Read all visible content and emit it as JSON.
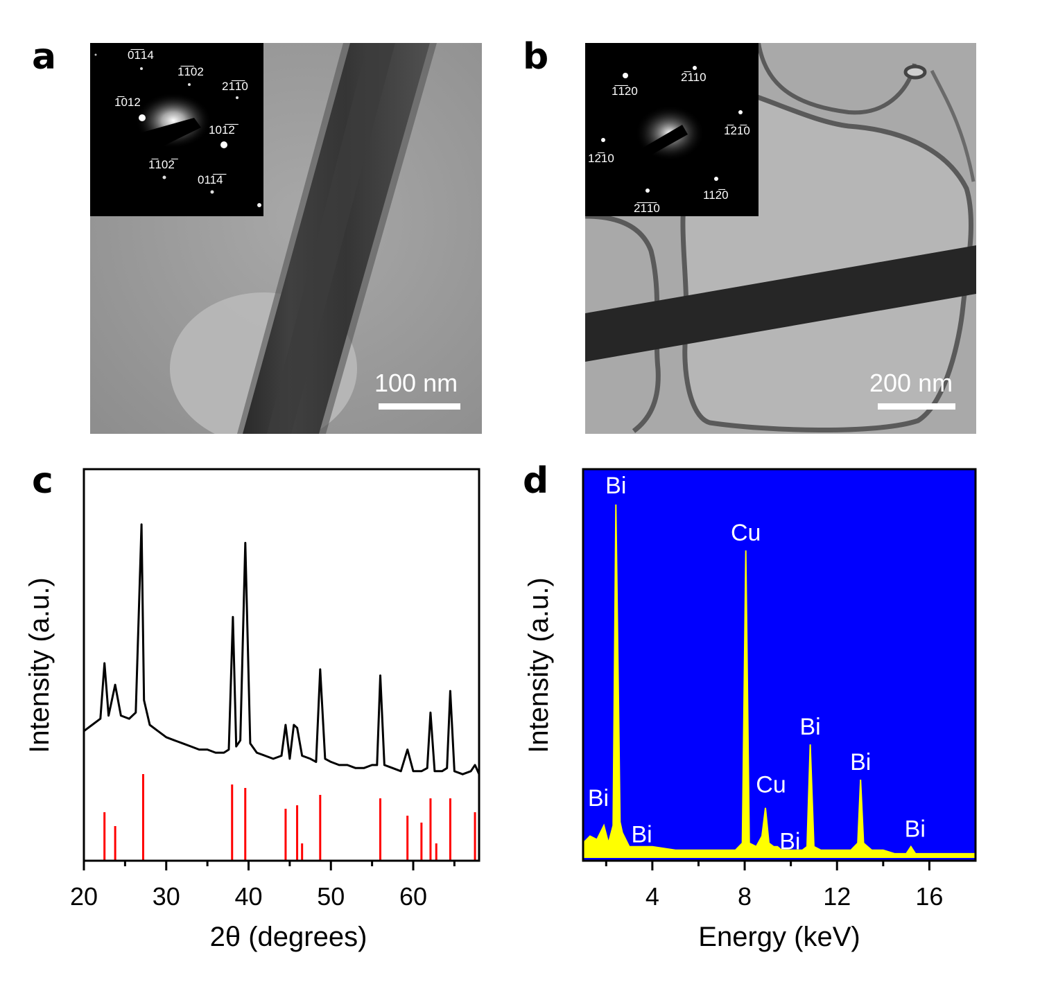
{
  "panel_labels": [
    "a",
    "b",
    "c",
    "d"
  ],
  "panel_a": {
    "scale_bar_label": "100 nm",
    "diffraction_spots": [
      "0̅1̅14",
      "1̅1̅02",
      "21̅1̅0",
      "1̅012",
      "101̅2̅",
      "1̅102̅",
      "011̅4̅"
    ]
  },
  "panel_b": {
    "scale_bar_label": "200 nm",
    "diffraction_spots": [
      "2̅110",
      "1̅1̅20",
      "1̅21̅0",
      "12̅10",
      "2̅1̅1̅0",
      "112̅0"
    ]
  },
  "chart_data": [
    {
      "type": "line",
      "panel": "c",
      "xlabel": "2θ (degrees)",
      "ylabel": "Intensity (a.u.)",
      "xlim": [
        20,
        68
      ],
      "xticks": [
        20,
        30,
        40,
        50,
        60
      ],
      "series": [
        {
          "color": "#000000",
          "x": [
            20.0,
            21.0,
            22.0,
            22.5,
            23.0,
            23.8,
            24.5,
            25.5,
            26.3,
            27.0,
            27.3,
            28.0,
            29.0,
            30.0,
            31.0,
            32.0,
            33.0,
            34.0,
            35.0,
            36.0,
            37.0,
            37.6,
            38.1,
            38.5,
            39.0,
            39.6,
            40.2,
            41.0,
            42.0,
            43.0,
            44.0,
            44.5,
            45.0,
            45.5,
            45.9,
            46.5,
            47.5,
            48.2,
            48.7,
            49.3,
            50.0,
            51.0,
            52.0,
            53.0,
            54.0,
            55.0,
            55.6,
            56.0,
            56.5,
            57.5,
            58.5,
            59.3,
            60.0,
            61.0,
            61.7,
            62.1,
            62.6,
            63.5,
            64.1,
            64.5,
            65.0,
            66.0,
            67.0,
            67.5,
            68.0
          ],
          "y": [
            18,
            20,
            22,
            40,
            23,
            33,
            23,
            22,
            24,
            85,
            28,
            20,
            18,
            16,
            15,
            14,
            13,
            12,
            12,
            11,
            11,
            12,
            55,
            13,
            15,
            79,
            14,
            11,
            10,
            9,
            10,
            20,
            9,
            20,
            19,
            10,
            9,
            8,
            38,
            9,
            8,
            7,
            7,
            6,
            6,
            7,
            7,
            36,
            7,
            6,
            5,
            12,
            5,
            5,
            6,
            24,
            5,
            5,
            6,
            31,
            5,
            4,
            5,
            7,
            4
          ]
        }
      ],
      "reference_peaks": {
        "color": "#ff0000",
        "x": [
          22.5,
          23.8,
          27.2,
          38.0,
          39.6,
          44.5,
          45.9,
          46.5,
          48.7,
          56.0,
          59.3,
          61.0,
          62.1,
          62.8,
          64.5,
          67.5
        ],
        "height": [
          14,
          10,
          25,
          22,
          21,
          15,
          16,
          5,
          19,
          18,
          13,
          11,
          18,
          5,
          18,
          14
        ]
      }
    },
    {
      "type": "area",
      "panel": "d",
      "xlabel": "Energy (keV)",
      "ylabel": "Intensity (a.u.)",
      "xlim": [
        1.0,
        18.0
      ],
      "xticks": [
        4,
        8,
        12,
        16
      ],
      "background_color": "#0000ff",
      "fill_color": "#ffff00",
      "series": [
        {
          "x": [
            1.0,
            1.3,
            1.6,
            1.9,
            2.1,
            2.3,
            2.42,
            2.6,
            2.7,
            3.0,
            3.5,
            4.0,
            5.0,
            6.0,
            7.0,
            7.6,
            7.9,
            8.05,
            8.2,
            8.5,
            8.75,
            8.9,
            9.05,
            9.25,
            9.42,
            9.6,
            10.0,
            10.5,
            10.7,
            10.84,
            11.0,
            11.3,
            12.0,
            12.6,
            12.9,
            13.02,
            13.15,
            13.5,
            14.0,
            14.5,
            15.0,
            15.2,
            15.4,
            16.0,
            17.0,
            18.0
          ],
          "y": [
            4,
            6,
            5,
            9,
            4,
            9,
            100,
            10,
            7,
            3,
            3,
            3,
            2,
            2,
            2,
            2,
            4,
            87,
            4,
            3,
            6,
            14,
            4,
            3,
            3,
            2,
            2,
            2,
            3,
            32,
            3,
            2,
            2,
            2,
            4,
            22,
            4,
            2,
            2,
            1,
            1,
            3,
            1,
            1,
            1,
            1
          ]
        }
      ],
      "annotations": [
        {
          "text": "Bi",
          "x": 2.42
        },
        {
          "text": "Cu",
          "x": 8.05
        },
        {
          "text": "Bi",
          "x": 10.84
        },
        {
          "text": "Bi",
          "x": 13.02
        },
        {
          "text": "Cu",
          "x": 8.9
        },
        {
          "text": "Bi",
          "x": 9.42
        },
        {
          "text": "Bi",
          "x": 1.9
        },
        {
          "text": "Bi",
          "x": 2.7
        },
        {
          "text": "Bi",
          "x": 15.2
        }
      ]
    }
  ]
}
